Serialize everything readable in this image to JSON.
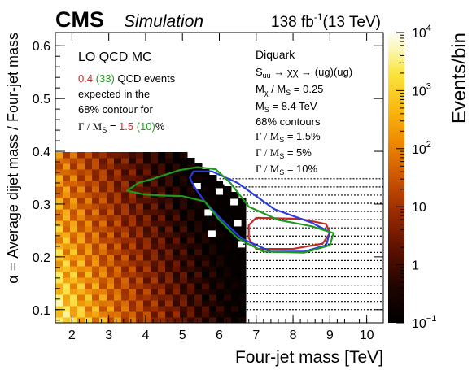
{
  "header": {
    "cms": "CMS",
    "simulation": "Simulation",
    "lumi_value": "138 fb",
    "lumi_exp": "-1",
    "energy": "(13 TeV)"
  },
  "legend_left": {
    "title": "LO QCD MC",
    "line1_a": "0.4",
    "line1_b": "(33)",
    "line1_c": "QCD events",
    "line2": "expected in the",
    "line3": "68% contour for",
    "line4_gamma": "Γ / M",
    "line4_sub": "S",
    "line4_eq": "=",
    "line4_v1": "1.5",
    "line4_v2": "(10)",
    "line4_pct": "%"
  },
  "legend_right": {
    "title": "Diquark",
    "process_s": "S",
    "process_sub": "uu",
    "process_rest": "→ χχ → (ug)(ug)",
    "mchi_m": "M",
    "mchi_sub": "χ",
    "mchi_mid": "/ M",
    "mchi_sub2": "S",
    "mchi_val": "= 0.25",
    "ms_m": "M",
    "ms_sub": "S",
    "ms_val": "= 8.4 TeV",
    "contours_title": "68% contours",
    "c1": "Γ / M",
    "c1_sub": "S",
    "c1_val": "= 1.5%",
    "c2": "Γ / M",
    "c2_sub": "S",
    "c2_val": "= 5%",
    "c3": "Γ / M",
    "c3_sub": "S",
    "c3_val": "= 10%"
  },
  "colors": {
    "red": "#c62828",
    "blue": "#2a3ddb",
    "green": "#1f9a1f"
  },
  "chart_data": {
    "type": "heatmap",
    "xlabel": "Four-jet mass [TeV]",
    "ylabel": "α = Average dijet mass / Four-jet mass",
    "xlim": [
      1.55,
      10.45
    ],
    "ylim": [
      0.075,
      0.625
    ],
    "x_ticks": [
      2,
      3,
      4,
      5,
      6,
      7,
      8,
      9,
      10
    ],
    "y_ticks": [
      0.1,
      0.2,
      0.3,
      0.4,
      0.5,
      0.6
    ],
    "colorbar": {
      "label": "Events/bin",
      "scale": "log",
      "range": [
        0.1,
        10000
      ],
      "ticks": [
        {
          "value": 10000,
          "base": "10",
          "exp": "4"
        },
        {
          "value": 1000,
          "base": "10",
          "exp": "3"
        },
        {
          "value": 100,
          "base": "10",
          "exp": "2"
        },
        {
          "value": 10,
          "base": "10",
          "exp": ""
        },
        {
          "value": 1,
          "base": "1",
          "exp": ""
        },
        {
          "value": 0.1,
          "base": "10",
          "exp": "−1"
        }
      ]
    },
    "contours": [
      {
        "gamma_pct": 1.5,
        "color": "red",
        "x": [
          7.0,
          8.2,
          8.9,
          9.0,
          8.8,
          8.0,
          7.0,
          6.8,
          6.8,
          7.0
        ],
        "y": [
          0.274,
          0.272,
          0.262,
          0.245,
          0.225,
          0.215,
          0.215,
          0.235,
          0.26,
          0.274
        ]
      },
      {
        "gamma_pct": 5,
        "color": "blue",
        "x": [
          5.3,
          5.8,
          6.5,
          7.5,
          8.5,
          9.0,
          8.9,
          8.3,
          7.4,
          6.6,
          6.1,
          5.6,
          5.3,
          5.2,
          5.3
        ],
        "y": [
          0.362,
          0.362,
          0.34,
          0.29,
          0.265,
          0.247,
          0.222,
          0.21,
          0.21,
          0.235,
          0.268,
          0.305,
          0.335,
          0.35,
          0.362
        ]
      },
      {
        "gamma_pct": 10,
        "color": "green",
        "x": [
          4.9,
          5.4,
          5.9,
          6.3,
          6.8,
          7.6,
          8.5,
          9.1,
          9.0,
          8.3,
          7.2,
          6.5,
          6.0,
          5.6,
          5.0,
          4.6,
          4.0,
          3.5,
          3.8,
          4.2,
          4.9
        ],
        "y": [
          0.364,
          0.37,
          0.366,
          0.34,
          0.295,
          0.27,
          0.258,
          0.245,
          0.222,
          0.208,
          0.21,
          0.235,
          0.27,
          0.305,
          0.315,
          0.316,
          0.318,
          0.325,
          0.34,
          0.348,
          0.364
        ]
      }
    ]
  }
}
